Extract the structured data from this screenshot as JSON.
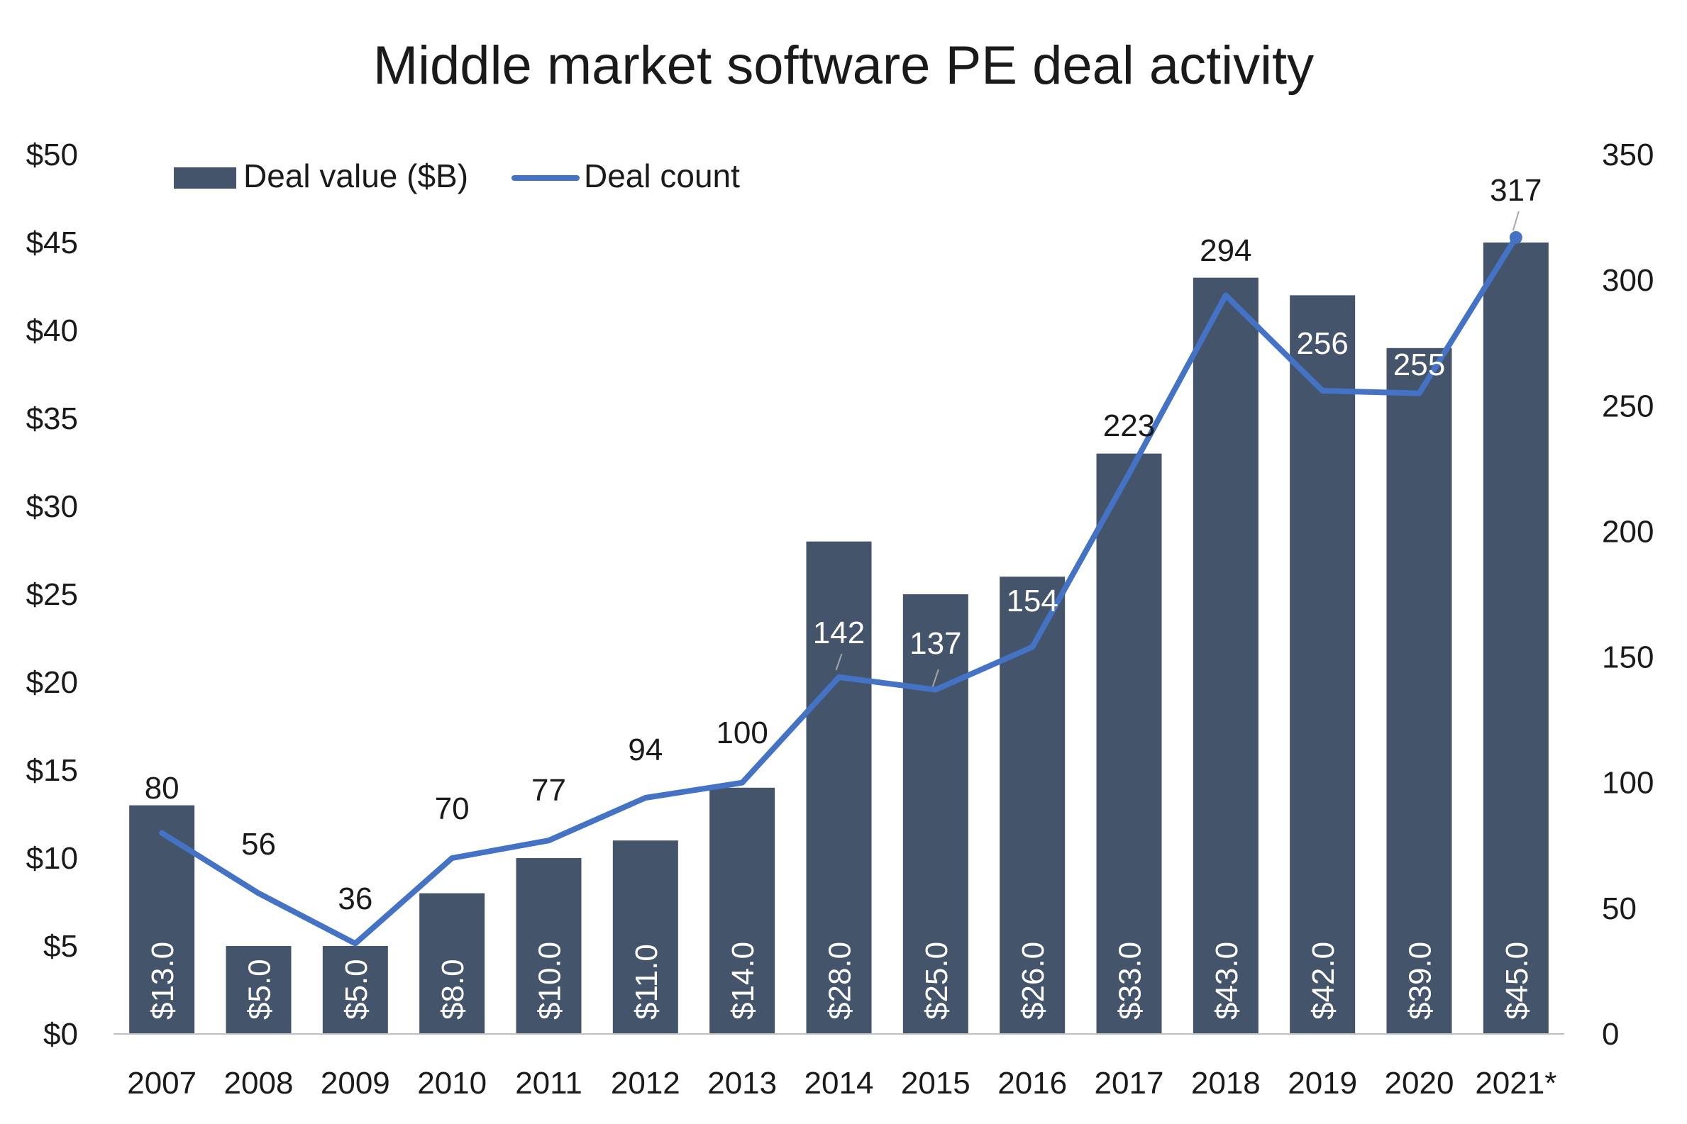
{
  "chart_data": {
    "type": "bar",
    "title": "Middle market software PE deal activity",
    "categories": [
      "2007",
      "2008",
      "2009",
      "2010",
      "2011",
      "2012",
      "2013",
      "2014",
      "2015",
      "2016",
      "2017",
      "2018",
      "2019",
      "2020",
      "2021*"
    ],
    "series": [
      {
        "name": "Deal value ($B)",
        "type": "bar",
        "axis": "left",
        "values": [
          13,
          5,
          5,
          8,
          10,
          11,
          14,
          28,
          25,
          26,
          33,
          43,
          42,
          39,
          45
        ],
        "labels": [
          "$13.0",
          "$5.0",
          "$5.0",
          "$8.0",
          "$10.0",
          "$11.0",
          "$14.0",
          "$28.0",
          "$25.0",
          "$26.0",
          "$33.0",
          "$43.0",
          "$42.0",
          "$39.0",
          "$45.0"
        ]
      },
      {
        "name": "Deal count",
        "type": "line",
        "axis": "right",
        "values": [
          80,
          56,
          36,
          70,
          77,
          94,
          100,
          142,
          137,
          154,
          223,
          294,
          256,
          255,
          317
        ],
        "labels": [
          "80",
          "56",
          "36",
          "70",
          "77",
          "94",
          "100",
          "142",
          "137",
          "154",
          "223",
          "294",
          "256",
          "255",
          "317"
        ]
      }
    ],
    "y_left": {
      "min": 0,
      "max": 50,
      "step": 5,
      "tick_labels": [
        "$0",
        "$5",
        "$10",
        "$15",
        "$20",
        "$25",
        "$30",
        "$35",
        "$40",
        "$45",
        "$50"
      ]
    },
    "y_right": {
      "min": 0,
      "max": 350,
      "step": 50,
      "tick_labels": [
        "0",
        "50",
        "100",
        "150",
        "200",
        "250",
        "300",
        "350"
      ]
    },
    "legend_position": "top-left",
    "grid": false
  },
  "colors": {
    "bar": "#44546a",
    "line": "#4472c4",
    "text": "#1a1a1a",
    "axis": "#bfbfbf"
  }
}
